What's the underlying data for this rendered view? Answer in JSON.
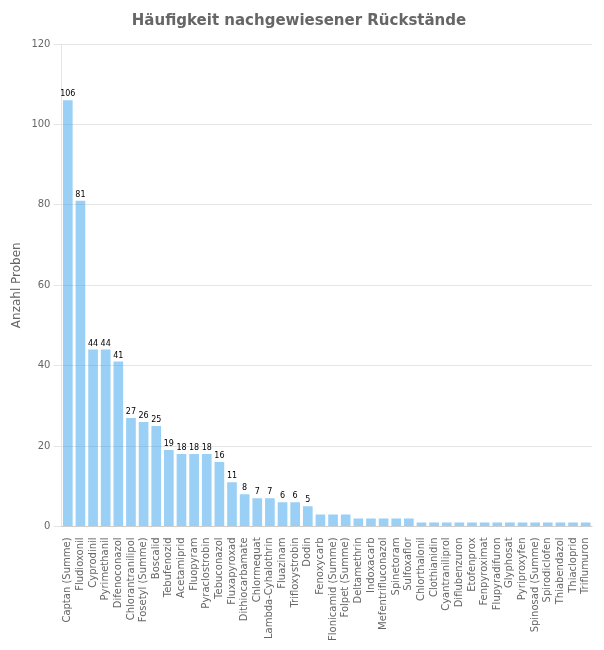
{
  "chart_data": {
    "type": "bar",
    "title": "Häufigkeit nachgewiesener Rückstände",
    "ylabel": "Anzahl Proben",
    "categories": [
      "Captan (Summe)",
      "Fludioxonil",
      "Cyprodinil",
      "Pyrimethanil",
      "Difenoconazol",
      "Chlorantranilipol",
      "Fosetyl (Summe)",
      "Boscalid",
      "Tebufenozid",
      "Acetamiprid",
      "Fluopyram",
      "Pyraclostrobin",
      "Tebuconazol",
      "Fluxapyroxad",
      "Dithiocarbamate",
      "Chlormequat",
      "Lambda-Cyhalothrin",
      "Fluazinam",
      "Trifloxystrobin",
      "Dodin",
      "Fenoxycarb",
      "Flonicamid (Summe)",
      "Folpet (Summe)",
      "Deltamethrin",
      "Indoxacarb",
      "Mefentrifluconazol",
      "Spinetoram",
      "Sulfoxaflor",
      "Chlorthalonil",
      "Clothianidin",
      "Cyantraniliprol",
      "Diflubenzuron",
      "Etofenprox",
      "Fenpyroximat",
      "Flupyradifuron",
      "Glyphosat",
      "Pyriproxyfen",
      "Spinosad (Summe)",
      "Spirodiclofen",
      "Thiabendazol",
      "Thiacloprid",
      "Triflumuron"
    ],
    "values": [
      106,
      81,
      44,
      44,
      41,
      27,
      26,
      25,
      19,
      18,
      18,
      18,
      16,
      11,
      8,
      7,
      7,
      6,
      6,
      5,
      3,
      3,
      3,
      2,
      2,
      2,
      2,
      2,
      1,
      1,
      1,
      1,
      1,
      1,
      1,
      1,
      1,
      1,
      1,
      1,
      1,
      1
    ],
    "data_labels": true,
    "value_labels": [
      "106",
      "81",
      "44",
      "44",
      "41",
      "27",
      "26",
      "25",
      "19",
      "18",
      "18",
      "18",
      "16",
      "11",
      "8",
      "7",
      "7",
      "6",
      "6",
      "5",
      null,
      null,
      null,
      null,
      null,
      null,
      null,
      null,
      null,
      null,
      null,
      null,
      null,
      null,
      null,
      null,
      null,
      null,
      null,
      null,
      null,
      null
    ],
    "ylim": [
      0,
      120
    ],
    "yticks": [
      0,
      20,
      40,
      60,
      80,
      100,
      120
    ],
    "grid": true
  }
}
